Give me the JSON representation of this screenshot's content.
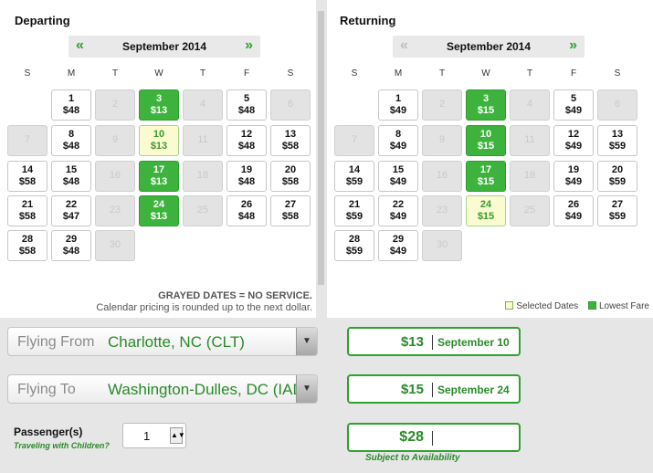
{
  "departing": {
    "title": "Departing",
    "month": "September 2014",
    "prev_icon": "«",
    "next_icon": "»",
    "weekdays": [
      "S",
      "M",
      "T",
      "W",
      "T",
      "F",
      "S"
    ],
    "weeks": [
      [
        null,
        {
          "d": "1",
          "p": "$48",
          "s": "normal"
        },
        {
          "d": "2",
          "s": "gray"
        },
        {
          "d": "3",
          "p": "$13",
          "s": "low"
        },
        {
          "d": "4",
          "s": "gray"
        },
        {
          "d": "5",
          "p": "$48",
          "s": "normal"
        },
        {
          "d": "6",
          "s": "gray"
        }
      ],
      [
        {
          "d": "7",
          "s": "gray"
        },
        {
          "d": "8",
          "p": "$48",
          "s": "normal"
        },
        {
          "d": "9",
          "s": "gray"
        },
        {
          "d": "10",
          "p": "$13",
          "s": "sel"
        },
        {
          "d": "11",
          "s": "gray"
        },
        {
          "d": "12",
          "p": "$48",
          "s": "normal"
        },
        {
          "d": "13",
          "p": "$58",
          "s": "normal"
        }
      ],
      [
        {
          "d": "14",
          "p": "$58",
          "s": "normal"
        },
        {
          "d": "15",
          "p": "$48",
          "s": "normal"
        },
        {
          "d": "16",
          "s": "gray"
        },
        {
          "d": "17",
          "p": "$13",
          "s": "low"
        },
        {
          "d": "18",
          "s": "gray"
        },
        {
          "d": "19",
          "p": "$48",
          "s": "normal"
        },
        {
          "d": "20",
          "p": "$58",
          "s": "normal"
        }
      ],
      [
        {
          "d": "21",
          "p": "$58",
          "s": "normal"
        },
        {
          "d": "22",
          "p": "$47",
          "s": "normal"
        },
        {
          "d": "23",
          "s": "gray"
        },
        {
          "d": "24",
          "p": "$13",
          "s": "low"
        },
        {
          "d": "25",
          "s": "gray"
        },
        {
          "d": "26",
          "p": "$48",
          "s": "normal"
        },
        {
          "d": "27",
          "p": "$58",
          "s": "normal"
        }
      ],
      [
        {
          "d": "28",
          "p": "$58",
          "s": "normal"
        },
        {
          "d": "29",
          "p": "$48",
          "s": "normal"
        },
        {
          "d": "30",
          "s": "gray"
        },
        null,
        null,
        null,
        null
      ]
    ],
    "note_bold": "GRAYED DATES = NO SERVICE.",
    "note": "Calendar pricing is rounded up to the next dollar."
  },
  "returning": {
    "title": "Returning",
    "month": "September 2014",
    "prev_icon": "«",
    "next_icon": "»",
    "weekdays": [
      "S",
      "M",
      "T",
      "W",
      "T",
      "F",
      "S"
    ],
    "weeks": [
      [
        null,
        {
          "d": "1",
          "p": "$49",
          "s": "normal"
        },
        {
          "d": "2",
          "s": "gray"
        },
        {
          "d": "3",
          "p": "$15",
          "s": "low"
        },
        {
          "d": "4",
          "s": "gray"
        },
        {
          "d": "5",
          "p": "$49",
          "s": "normal"
        },
        {
          "d": "6",
          "s": "gray"
        }
      ],
      [
        {
          "d": "7",
          "s": "gray"
        },
        {
          "d": "8",
          "p": "$49",
          "s": "normal"
        },
        {
          "d": "9",
          "s": "gray"
        },
        {
          "d": "10",
          "p": "$15",
          "s": "low"
        },
        {
          "d": "11",
          "s": "gray"
        },
        {
          "d": "12",
          "p": "$49",
          "s": "normal"
        },
        {
          "d": "13",
          "p": "$59",
          "s": "normal"
        }
      ],
      [
        {
          "d": "14",
          "p": "$59",
          "s": "normal"
        },
        {
          "d": "15",
          "p": "$49",
          "s": "normal"
        },
        {
          "d": "16",
          "s": "gray"
        },
        {
          "d": "17",
          "p": "$15",
          "s": "low"
        },
        {
          "d": "18",
          "s": "gray"
        },
        {
          "d": "19",
          "p": "$49",
          "s": "normal"
        },
        {
          "d": "20",
          "p": "$59",
          "s": "normal"
        }
      ],
      [
        {
          "d": "21",
          "p": "$59",
          "s": "normal"
        },
        {
          "d": "22",
          "p": "$49",
          "s": "normal"
        },
        {
          "d": "23",
          "s": "gray"
        },
        {
          "d": "24",
          "p": "$15",
          "s": "sel"
        },
        {
          "d": "25",
          "s": "gray"
        },
        {
          "d": "26",
          "p": "$49",
          "s": "normal"
        },
        {
          "d": "27",
          "p": "$59",
          "s": "normal"
        }
      ],
      [
        {
          "d": "28",
          "p": "$59",
          "s": "normal"
        },
        {
          "d": "29",
          "p": "$49",
          "s": "normal"
        },
        {
          "d": "30",
          "s": "gray"
        },
        null,
        null,
        null,
        null
      ]
    ],
    "legend_selected": "Selected Dates",
    "legend_lowest": "Lowest Fare"
  },
  "form": {
    "from_label": "Flying From",
    "from_value": "Charlotte, NC (CLT)",
    "to_label": "Flying To",
    "to_value": "Washington-Dulles, DC (IAD)",
    "passengers_label": "Passenger(s)",
    "children_link": "Traveling with Children?",
    "passengers_value": "1"
  },
  "summary": {
    "depart_price": "$13",
    "depart_date": "September 10",
    "return_price": "$15",
    "return_date": "September 24",
    "total_price": "$28",
    "availability": "Subject to Availability"
  },
  "colors": {
    "lowest_fare": "#3db33d",
    "selected_date": "#fbfbd2",
    "brand_green": "#2a8a2a"
  }
}
